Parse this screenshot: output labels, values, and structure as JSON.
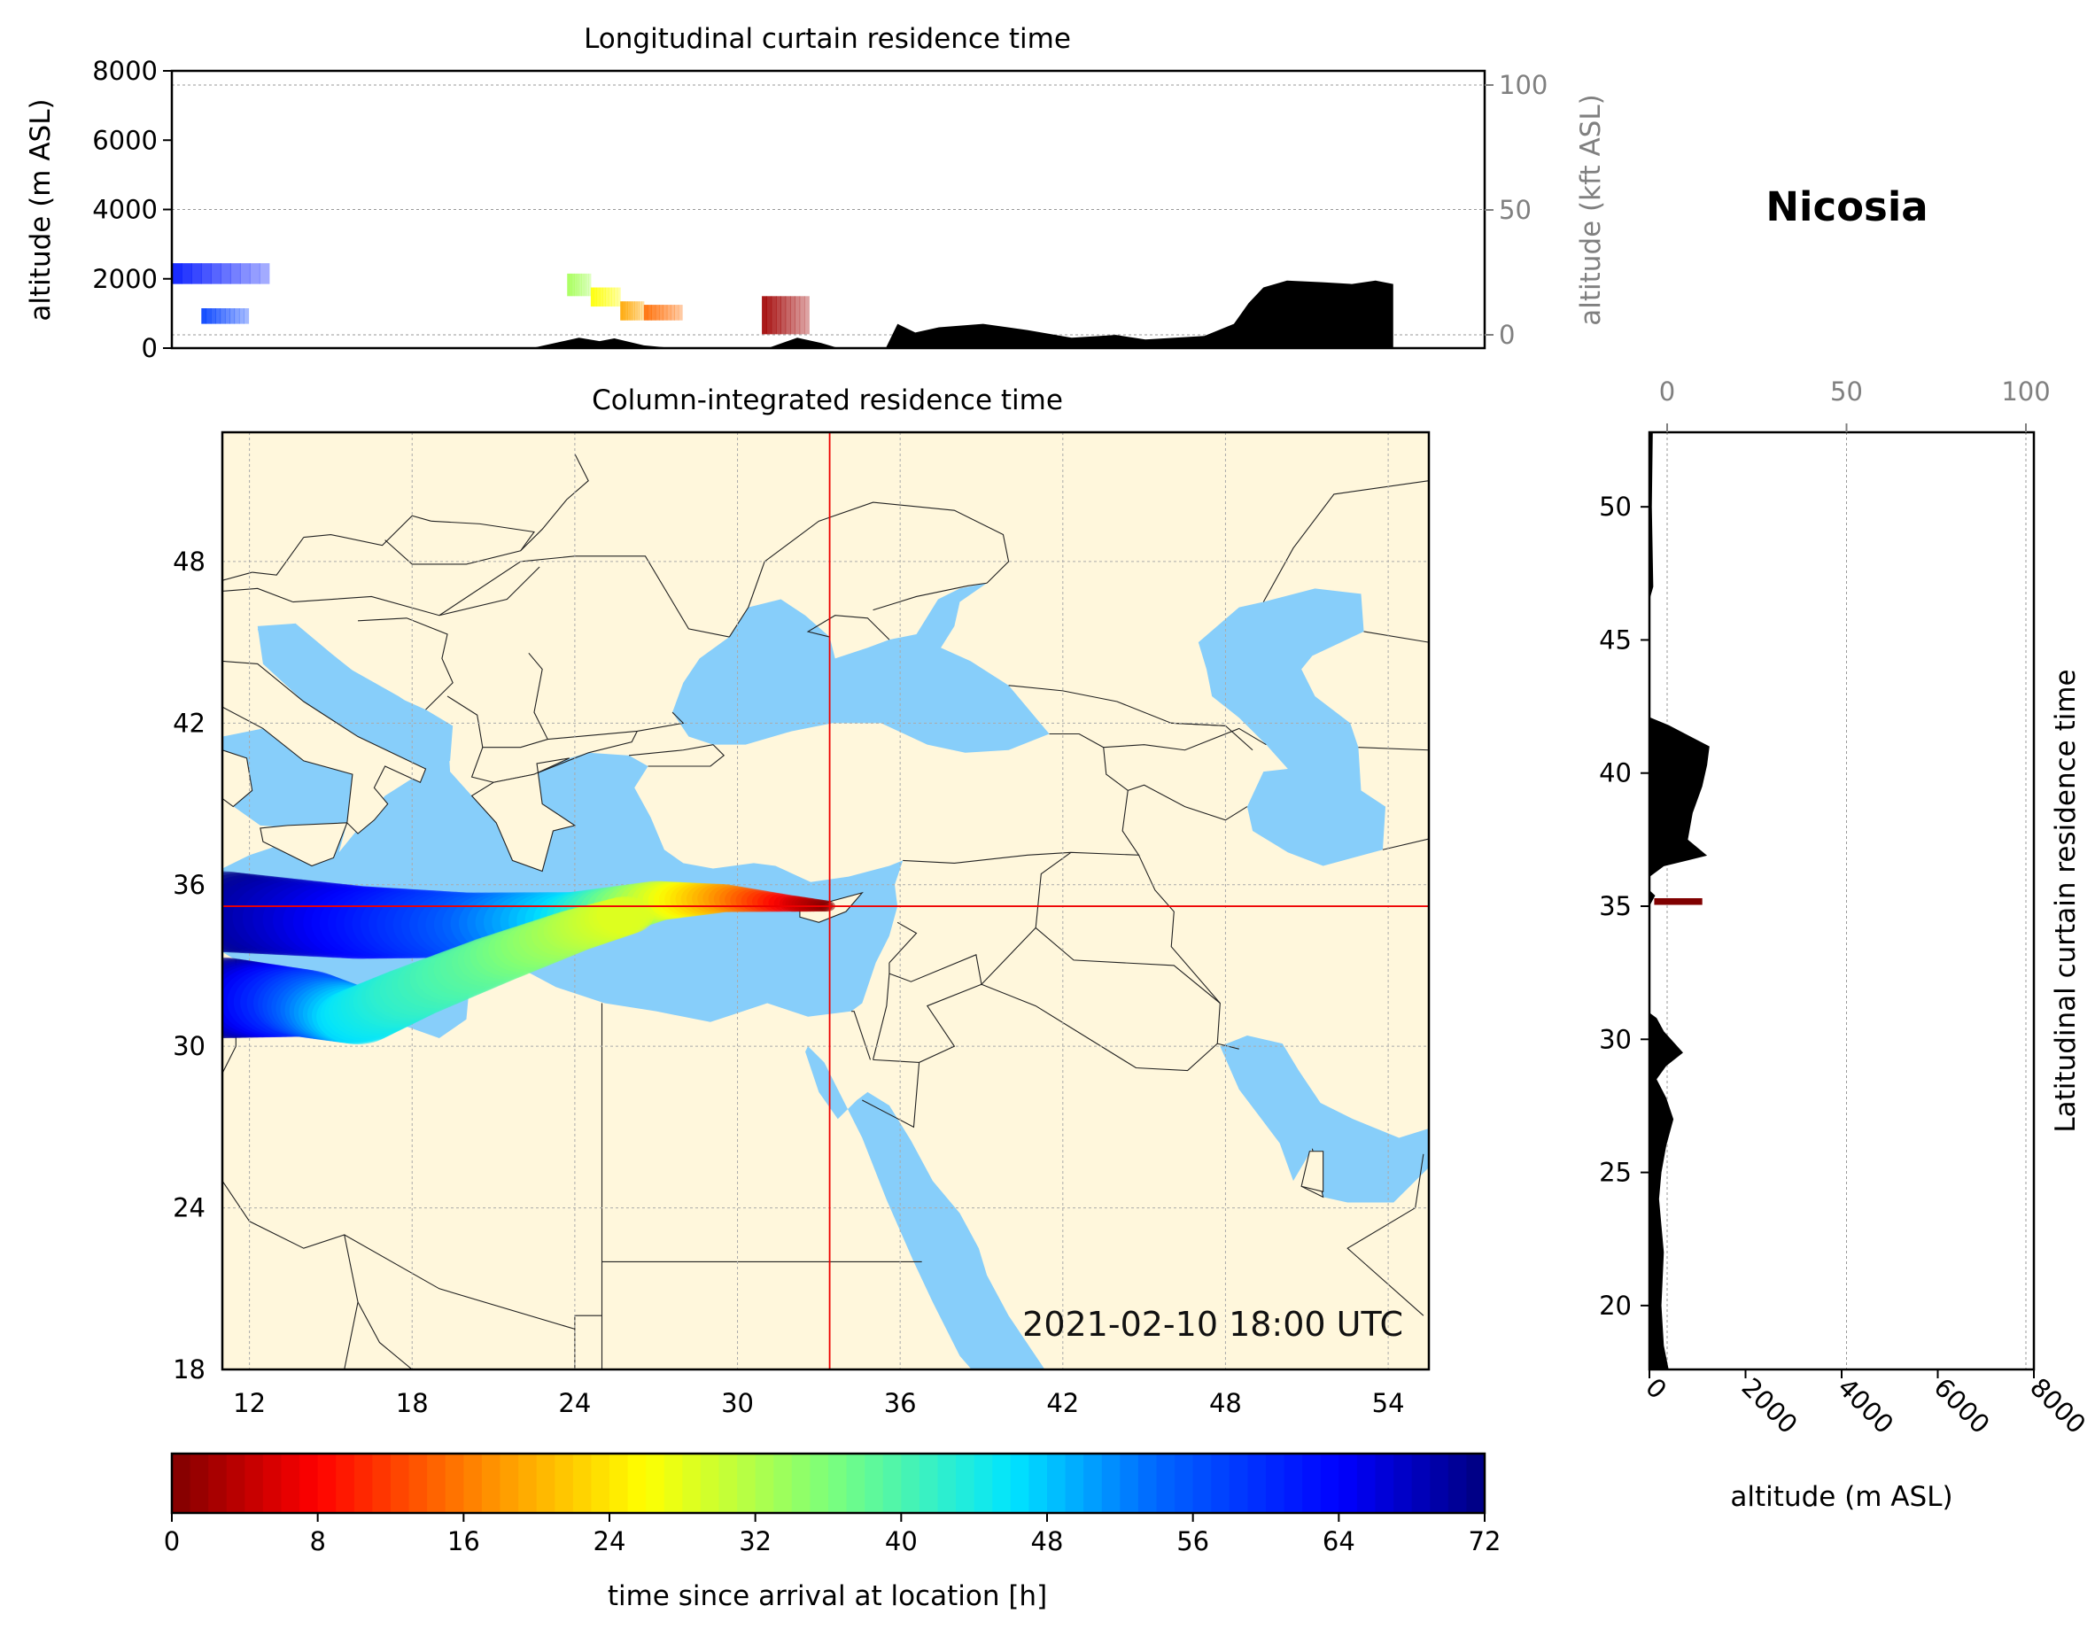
{
  "figure": {
    "station": "Nicosia",
    "timestamp": "2021-02-10 18:00 UTC"
  },
  "chart_data": [
    {
      "type": "area",
      "panel": "longitudinal-curtain",
      "title": "Longitudinal curtain residence time",
      "ylabel": "altitude (m ASL)",
      "ylabel_right": "altitude (kft ASL)",
      "xlim": [
        11,
        55.5
      ],
      "ylim": [
        0,
        8000
      ],
      "yticks": [
        "0",
        "2000",
        "4000",
        "6000",
        "8000"
      ],
      "yticks_right": [
        "0",
        "50",
        "100"
      ],
      "grid": true,
      "terrain": [
        [
          11,
          0
        ],
        [
          23.2,
          0
        ],
        [
          24,
          150
        ],
        [
          24.8,
          300
        ],
        [
          25.5,
          200
        ],
        [
          26,
          280
        ],
        [
          27,
          80
        ],
        [
          28,
          0
        ],
        [
          31.2,
          0
        ],
        [
          32.2,
          300
        ],
        [
          33,
          150
        ],
        [
          33.6,
          0
        ],
        [
          35.2,
          0
        ],
        [
          35.6,
          700
        ],
        [
          36.2,
          450
        ],
        [
          37,
          600
        ],
        [
          38.5,
          700
        ],
        [
          40,
          520
        ],
        [
          41.5,
          300
        ],
        [
          43,
          380
        ],
        [
          44,
          250
        ],
        [
          46,
          350
        ],
        [
          47,
          700
        ],
        [
          47.5,
          1300
        ],
        [
          48,
          1750
        ],
        [
          48.8,
          1950
        ],
        [
          50,
          1900
        ],
        [
          51,
          1850
        ],
        [
          51.8,
          1950
        ],
        [
          52.4,
          1850
        ],
        [
          52.4,
          0
        ]
      ],
      "plume": [
        {
          "lon_start": 11.0,
          "lon_end": 14.3,
          "alt_low": 1850,
          "alt_high": 2450,
          "age_h": 62
        },
        {
          "lon_start": 12.0,
          "lon_end": 13.6,
          "alt_low": 700,
          "alt_high": 1150,
          "age_h": 58
        },
        {
          "lon_start": 24.4,
          "lon_end": 25.2,
          "alt_low": 1500,
          "alt_high": 2150,
          "age_h": 33
        },
        {
          "lon_start": 25.2,
          "lon_end": 26.2,
          "alt_low": 1200,
          "alt_high": 1750,
          "age_h": 26
        },
        {
          "lon_start": 26.2,
          "lon_end": 27.0,
          "alt_low": 800,
          "alt_high": 1350,
          "age_h": 19
        },
        {
          "lon_start": 27.0,
          "lon_end": 28.3,
          "alt_low": 800,
          "alt_high": 1250,
          "age_h": 15
        },
        {
          "lon_start": 31.0,
          "lon_end": 32.6,
          "alt_low": 400,
          "alt_high": 1500,
          "age_h": 2
        }
      ]
    },
    {
      "type": "heatmap",
      "panel": "column-integrated-map",
      "title": "Column-integrated residence time",
      "xlim": [
        11,
        55.5
      ],
      "ylim": [
        18,
        52.8
      ],
      "xticks": [
        "12",
        "18",
        "24",
        "30",
        "36",
        "42",
        "48",
        "54"
      ],
      "yticks": [
        "18",
        "24",
        "30",
        "36",
        "42",
        "48"
      ],
      "crosshair": {
        "lon": 33.4,
        "lat": 35.2
      },
      "land_color": "#fff7dc",
      "sea_color": "#87cefa",
      "plume_branches": [
        {
          "points": [
            [
              11,
              35.0
            ],
            [
              16,
              34.6
            ],
            [
              20,
              34.5
            ],
            [
              24,
              34.7
            ],
            [
              27,
              35.4
            ],
            [
              29.5,
              35.5
            ],
            [
              32,
              35.3
            ],
            [
              33.4,
              35.2
            ]
          ],
          "ages_h": [
            72,
            64,
            56,
            46,
            30,
            18,
            6,
            0
          ]
        },
        {
          "points": [
            [
              11,
              31.8
            ],
            [
              14,
              31.6
            ],
            [
              16,
              31.1
            ],
            [
              18,
              32.0
            ],
            [
              21,
              33.2
            ],
            [
              24,
              34.3
            ],
            [
              26,
              34.9
            ]
          ],
          "ages_h": [
            72,
            58,
            46,
            42,
            38,
            32,
            28
          ]
        }
      ]
    },
    {
      "type": "area",
      "panel": "latitudinal-curtain",
      "title": "Latitudinal curtain residence time",
      "xlabel": "altitude (m ASL)",
      "xlim": [
        0,
        8000
      ],
      "ylim": [
        17.6,
        52.8
      ],
      "xticks": [
        "0",
        "2000",
        "4000",
        "6000",
        "8000"
      ],
      "xticks_top": [
        "0",
        "50",
        "100"
      ],
      "yticks": [
        "20",
        "25",
        "30",
        "35",
        "40",
        "45",
        "50"
      ],
      "grid": true,
      "terrain": [
        [
          17.6,
          400
        ],
        [
          18.5,
          300
        ],
        [
          20,
          250
        ],
        [
          22,
          300
        ],
        [
          24,
          200
        ],
        [
          25,
          250
        ],
        [
          26,
          350
        ],
        [
          27,
          500
        ],
        [
          27.8,
          350
        ],
        [
          28.5,
          150
        ],
        [
          29,
          350
        ],
        [
          29.5,
          700
        ],
        [
          30.3,
          300
        ],
        [
          30.8,
          150
        ],
        [
          31,
          0
        ],
        [
          35,
          0
        ],
        [
          35.4,
          120
        ],
        [
          35.6,
          0
        ],
        [
          36.1,
          0
        ],
        [
          36.5,
          300
        ],
        [
          36.9,
          1200
        ],
        [
          37.5,
          800
        ],
        [
          38.5,
          900
        ],
        [
          39.5,
          1100
        ],
        [
          40.3,
          1200
        ],
        [
          41,
          1250
        ],
        [
          41.8,
          400
        ],
        [
          42.1,
          0
        ],
        [
          46.5,
          0
        ],
        [
          47,
          80
        ],
        [
          50,
          50
        ],
        [
          52.8,
          70
        ]
      ],
      "plume": [
        {
          "lat_low": 35.05,
          "lat_high": 35.3,
          "alt_low": 100,
          "alt_high": 1100,
          "age_h": 0
        }
      ]
    },
    {
      "type": "heatmap",
      "panel": "colorbar",
      "xlabel": "time since arrival at location [h]",
      "range": [
        0,
        72
      ],
      "ticks": [
        "0",
        "8",
        "16",
        "24",
        "32",
        "40",
        "48",
        "56",
        "64",
        "72"
      ],
      "colormap": "jet-reversed"
    }
  ]
}
